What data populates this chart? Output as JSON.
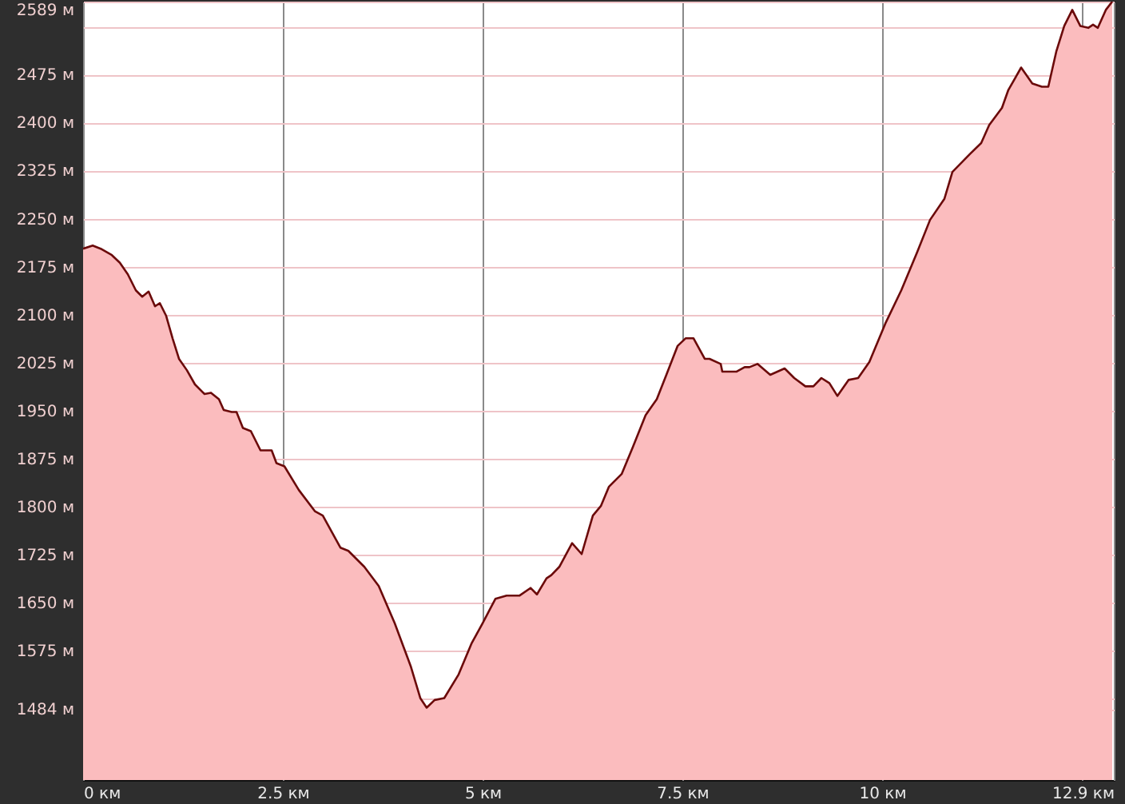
{
  "chart_data": {
    "type": "area",
    "xlim": [
      0,
      12.9
    ],
    "ylim": [
      1373,
      2589
    ],
    "xticks": [
      {
        "value": 0,
        "label": "0 км"
      },
      {
        "value": 2.5,
        "label": "2.5 км"
      },
      {
        "value": 5,
        "label": "5 км"
      },
      {
        "value": 7.5,
        "label": "7.5 км"
      },
      {
        "value": 10,
        "label": "10 км"
      },
      {
        "value": 12.5,
        "label": null
      },
      {
        "value": 12.9,
        "label": "12.9 км"
      }
    ],
    "yticks": [
      {
        "value": 2589,
        "label": "2589 м"
      },
      {
        "value": 2550,
        "label": null
      },
      {
        "value": 2475,
        "label": "2475 м"
      },
      {
        "value": 2400,
        "label": "2400 м"
      },
      {
        "value": 2325,
        "label": "2325 м"
      },
      {
        "value": 2250,
        "label": "2250 м"
      },
      {
        "value": 2175,
        "label": "2175 м"
      },
      {
        "value": 2100,
        "label": "2100 м"
      },
      {
        "value": 2025,
        "label": "2025 м"
      },
      {
        "value": 1950,
        "label": "1950 м"
      },
      {
        "value": 1875,
        "label": "1875 м"
      },
      {
        "value": 1800,
        "label": "1800 м"
      },
      {
        "value": 1725,
        "label": "1725 м"
      },
      {
        "value": 1650,
        "label": "1650 м"
      },
      {
        "value": 1575,
        "label": "1575 м"
      },
      {
        "value": 1500,
        "label": null
      },
      {
        "value": 1484,
        "label": "1484 м"
      }
    ],
    "grid": true,
    "x": [
      0,
      0.12,
      0.22,
      0.36,
      0.46,
      0.56,
      0.66,
      0.74,
      0.82,
      0.9,
      0.96,
      1.04,
      1.12,
      1.2,
      1.3,
      1.4,
      1.52,
      1.6,
      1.7,
      1.76,
      1.86,
      1.92,
      2.0,
      2.1,
      2.22,
      2.36,
      2.42,
      2.52,
      2.7,
      2.9,
      3.0,
      3.22,
      3.32,
      3.52,
      3.7,
      3.9,
      4.1,
      4.22,
      4.3,
      4.4,
      4.52,
      4.7,
      4.86,
      5.0,
      5.16,
      5.3,
      5.46,
      5.6,
      5.68,
      5.8,
      5.86,
      5.96,
      6.12,
      6.24,
      6.38,
      6.48,
      6.58,
      6.74,
      6.88,
      7.04,
      7.18,
      7.3,
      7.44,
      7.54,
      7.64,
      7.78,
      7.84,
      7.98,
      8.0,
      8.18,
      8.28,
      8.34,
      8.44,
      8.6,
      8.78,
      8.9,
      9.04,
      9.14,
      9.24,
      9.34,
      9.44,
      9.58,
      9.7,
      9.84,
      10.04,
      10.24,
      10.44,
      10.6,
      10.78,
      10.88,
      11.1,
      11.24,
      11.34,
      11.5,
      11.58,
      11.74,
      11.88,
      12.0,
      12.08,
      12.18,
      12.28,
      12.38,
      12.48,
      12.58,
      12.64,
      12.7,
      12.8,
      12.88
    ],
    "series": [
      {
        "color": "#fbbcbe",
        "values": [
          2203,
          2208,
          2203,
          2193,
          2181,
          2163,
          2138,
          2128,
          2136,
          2113,
          2118,
          2098,
          2063,
          2031,
          2013,
          1991,
          1976,
          1978,
          1968,
          1951,
          1948,
          1948,
          1923,
          1918,
          1888,
          1888,
          1868,
          1863,
          1826,
          1793,
          1786,
          1736,
          1731,
          1706,
          1676,
          1618,
          1551,
          1501,
          1486,
          1498,
          1501,
          1538,
          1586,
          1618,
          1656,
          1661,
          1661,
          1673,
          1663,
          1688,
          1693,
          1706,
          1743,
          1726,
          1786,
          1801,
          1831,
          1851,
          1893,
          1943,
          1968,
          2006,
          2051,
          2063,
          2063,
          2031,
          2031,
          2023,
          2011,
          2011,
          2018,
          2018,
          2023,
          2006,
          2016,
          2001,
          1988,
          1988,
          2001,
          1993,
          1973,
          1998,
          2001,
          2026,
          2086,
          2138,
          2198,
          2248,
          2281,
          2323,
          2351,
          2368,
          2396,
          2423,
          2451,
          2486,
          2461,
          2456,
          2456,
          2511,
          2551,
          2576,
          2551,
          2548,
          2553,
          2548,
          2576,
          2589
        ]
      }
    ]
  }
}
